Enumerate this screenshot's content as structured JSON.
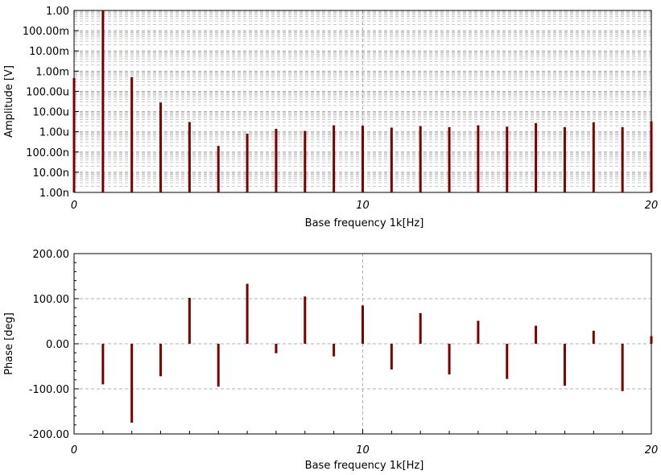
{
  "chart_data": [
    {
      "type": "bar",
      "plot": "amplitude",
      "xlabel": "Base frequency 1k[Hz]",
      "ylabel": "Amplitude [V]",
      "xlim": [
        0,
        20
      ],
      "ylim": [
        1e-09,
        1
      ],
      "yscale": "log",
      "grid": true,
      "x_ticks": [
        "0",
        "10",
        "20"
      ],
      "y_ticks": [
        "1.00",
        "100.00m",
        "10.00m",
        "1.00m",
        "100.00u",
        "10.00u",
        "1.00u",
        "100.00n",
        "10.00n",
        "1.00n"
      ],
      "color": "#7a0000",
      "x": [
        0,
        1,
        2,
        3,
        4,
        5,
        6,
        7,
        8,
        9,
        10,
        11,
        12,
        13,
        14,
        15,
        16,
        17,
        18,
        19,
        20
      ],
      "values": [
        0.00045,
        1.0,
        0.0005,
        2.8e-05,
        3e-06,
        2e-07,
        8e-07,
        1.4e-06,
        1.1e-06,
        2.1e-06,
        2e-06,
        1.6e-06,
        1.9e-06,
        1.7e-06,
        2.1e-06,
        1.8e-06,
        2.7e-06,
        1.7e-06,
        2.9e-06,
        1.7e-06,
        3.3e-06
      ]
    },
    {
      "type": "bar",
      "plot": "phase",
      "xlabel": "Base frequency 1k[Hz]",
      "ylabel": "Phase [deg]",
      "xlim": [
        0,
        20
      ],
      "ylim": [
        -200,
        200
      ],
      "grid": true,
      "x_ticks": [
        "0",
        "10",
        "20"
      ],
      "y_ticks": [
        "200.00",
        "100.00",
        "0.00",
        "-100.00",
        "-200.00"
      ],
      "color": "#7a0000",
      "x": [
        1,
        2,
        3,
        4,
        5,
        6,
        7,
        8,
        9,
        10,
        11,
        12,
        13,
        14,
        15,
        16,
        17,
        18,
        19,
        20
      ],
      "values": [
        -90,
        -175,
        -72,
        102,
        -95,
        133,
        -21,
        105,
        -28,
        85,
        -57,
        68,
        -68,
        51,
        -78,
        40,
        -93,
        29,
        -105,
        17
      ]
    }
  ]
}
